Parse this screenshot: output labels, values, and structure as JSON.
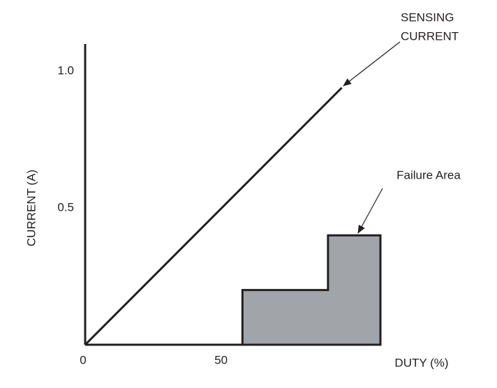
{
  "chart_data": {
    "type": "line",
    "x_label": "DUTY (%)",
    "y_label": "CURRENT (A)",
    "xlim": [
      0,
      107
    ],
    "ylim": [
      0,
      1.1
    ],
    "xticks": [
      0,
      50
    ],
    "yticks": [
      0.5,
      {
        "value": 1,
        "label": "1.0"
      }
    ],
    "series": [
      {
        "x": [
          0,
          93
        ],
        "values": [
          0,
          0.94
        ],
        "color": "#231f20"
      }
    ],
    "areas": [
      {
        "label": "Failure Area",
        "color": "#a1a5aa",
        "x": [
          57,
          57,
          88,
          88,
          107,
          107
        ],
        "values": [
          0,
          0.2,
          0.2,
          0.4,
          0.4,
          0
        ]
      }
    ],
    "annotations": [
      {
        "lines": [
          "SENSING",
          "CURRENT"
        ]
      }
    ]
  }
}
